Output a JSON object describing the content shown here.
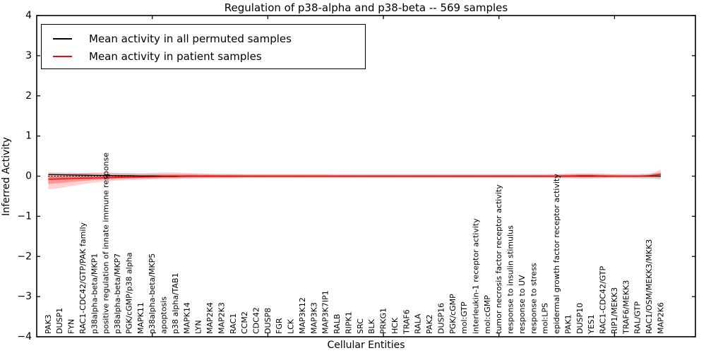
{
  "title": "Regulation of p38-alpha and p38-beta -- 569 samples",
  "legend": {
    "entries": [
      {
        "label": "Mean activity in all permuted samples",
        "color": "#000000"
      },
      {
        "label": "Mean activity in patient samples",
        "color": "#ff0000"
      }
    ]
  },
  "colors": {
    "patient_line": "#ff0000",
    "permuted_line": "#000000",
    "patient_band": "rgba(255,0,0,0.18)",
    "patient_band_inner": "rgba(255,0,0,0.28)",
    "permuted_band": "rgba(0,0,0,0.14)",
    "zero_line": "#000000",
    "frame": "#000000"
  },
  "chart_data": {
    "type": "line",
    "title": "Regulation of p38-alpha and p38-beta -- 569 samples",
    "xlabel": "Cellular Entities",
    "ylabel": "Inferred Activity",
    "ylim": [
      -4,
      4
    ],
    "xlim": [
      0,
      57
    ],
    "yticks": [
      4,
      3,
      2,
      1,
      0,
      -1,
      -2,
      -3,
      -4
    ],
    "xticks_major": [
      10,
      20,
      30,
      40,
      50
    ],
    "grid": false,
    "legend_position": "upper left",
    "zero_line_style": "dotted",
    "categories": [
      "PAK3",
      "DUSP1",
      "FYN",
      "RAC1-CDC42/GTP/PAK family",
      "p38alpha-beta/MKP1",
      "positive regulation of innate immune response",
      "p38alpha-beta/MKP7",
      "PGK/cGMP/p38 alpha",
      "MAPK11",
      "p38alpha-beta/MKP5",
      "apoptosis",
      "p38 alpha/TAB1",
      "MAPK14",
      "LYN",
      "MAP2K4",
      "MAP2K3",
      "RAC1",
      "CCM2",
      "CDC42",
      "DUSP8",
      "FGR",
      "LCK",
      "MAP3K12",
      "MAP3K3",
      "MAP3K7IP1",
      "RALB",
      "RIPK1",
      "SRC",
      "BLK",
      "PRKG1",
      "HCK",
      "TRAF6",
      "RALA",
      "PAK2",
      "DUSP16",
      "PGK/cGMP",
      "mol:GTP",
      "interleukin-1 receptor activity",
      "mol:cGMP",
      "tumor necrosis factor receptor activity",
      "response to insulin stimulus",
      "response to UV",
      "response to stress",
      "mol:LPS",
      "epidermal growth factor receptor activity",
      "PAK1",
      "DUSP10",
      "YES1",
      "RAC1-CDC42/GTP",
      "RIP1/MEKK3",
      "TRAF6/MEKK3",
      "RAL/GTP",
      "RAC1/OSM/MEKK3/MKK3",
      "MAP2K6"
    ],
    "series": [
      {
        "name": "Mean activity in all permuted samples",
        "color": "#000000",
        "values": [
          0.04,
          0.035,
          0.03,
          0.025,
          0.02,
          0.015,
          0.01,
          0.01,
          0.005,
          0.005,
          0,
          0,
          0,
          0,
          0,
          0,
          0,
          0,
          0,
          0,
          0,
          0,
          0,
          0,
          0,
          0,
          0,
          0,
          0,
          0,
          0,
          0,
          0,
          0,
          0,
          0,
          0,
          0,
          0,
          0,
          0,
          0,
          0,
          0,
          0,
          0,
          0,
          0,
          0,
          0,
          0,
          0,
          0,
          0
        ],
        "band_upper": [
          0.1,
          0.09,
          0.085,
          0.08,
          0.075,
          0.07,
          0.07,
          0.065,
          0.06,
          0.06,
          0.055,
          0.055,
          0.055,
          0.055,
          0.055,
          0.055,
          0.055,
          0.055,
          0.055,
          0.055,
          0.055,
          0.055,
          0.055,
          0.055,
          0.055,
          0.055,
          0.055,
          0.055,
          0.055,
          0.055,
          0.055,
          0.055,
          0.055,
          0.055,
          0.055,
          0.055,
          0.055,
          0.055,
          0.055,
          0.055,
          0.055,
          0.055,
          0.055,
          0.055,
          0.055,
          0.055,
          0.055,
          0.055,
          0.055,
          0.055,
          0.06,
          0.06,
          0.065,
          0.08
        ],
        "band_lower": [
          -0.07,
          -0.07,
          -0.065,
          -0.065,
          -0.06,
          -0.06,
          -0.06,
          -0.055,
          -0.055,
          -0.055,
          -0.05,
          -0.05,
          -0.05,
          -0.05,
          -0.05,
          -0.05,
          -0.05,
          -0.05,
          -0.05,
          -0.05,
          -0.05,
          -0.05,
          -0.05,
          -0.05,
          -0.05,
          -0.05,
          -0.05,
          -0.05,
          -0.05,
          -0.05,
          -0.05,
          -0.05,
          -0.05,
          -0.05,
          -0.05,
          -0.05,
          -0.05,
          -0.05,
          -0.05,
          -0.05,
          -0.05,
          -0.05,
          -0.05,
          -0.05,
          -0.05,
          -0.05,
          -0.05,
          -0.05,
          -0.05,
          -0.05,
          -0.055,
          -0.06,
          -0.065,
          -0.08
        ]
      },
      {
        "name": "Mean activity in patient samples",
        "color": "#ff0000",
        "values": [
          -0.08,
          -0.07,
          -0.06,
          -0.05,
          -0.045,
          -0.04,
          -0.03,
          -0.025,
          -0.02,
          -0.015,
          -0.01,
          -0.01,
          0,
          0,
          0,
          0,
          0,
          0,
          0,
          0,
          0,
          0,
          0,
          0,
          0,
          0,
          0,
          0,
          0,
          0,
          0,
          0,
          0,
          0,
          0,
          0,
          0,
          0,
          0,
          0,
          0,
          0,
          0,
          0,
          0,
          0,
          0.01,
          0.01,
          0,
          0,
          0,
          0,
          0.01,
          0.04
        ],
        "band_upper": [
          0.07,
          0.07,
          0.07,
          0.08,
          0.09,
          0.09,
          0.08,
          0.08,
          0.07,
          0.08,
          0.09,
          0.09,
          0.08,
          0.07,
          0.06,
          0.05,
          0.05,
          0.04,
          0.04,
          0.04,
          0.04,
          0.04,
          0.04,
          0.04,
          0.04,
          0.03,
          0.03,
          0.03,
          0.03,
          0.03,
          0.03,
          0.03,
          0.03,
          0.03,
          0.03,
          0.03,
          0.03,
          0.03,
          0.03,
          0.03,
          0.03,
          0.03,
          0.03,
          0.03,
          0.04,
          0.06,
          0.07,
          0.07,
          0.06,
          0.04,
          0.03,
          0.03,
          0.05,
          0.16
        ],
        "band_lower": [
          -0.33,
          -0.3,
          -0.25,
          -0.2,
          -0.16,
          -0.13,
          -0.11,
          -0.1,
          -0.09,
          -0.08,
          -0.07,
          -0.07,
          -0.06,
          -0.06,
          -0.05,
          -0.05,
          -0.05,
          -0.04,
          -0.04,
          -0.04,
          -0.04,
          -0.04,
          -0.04,
          -0.04,
          -0.04,
          -0.04,
          -0.04,
          -0.04,
          -0.04,
          -0.04,
          -0.04,
          -0.04,
          -0.04,
          -0.04,
          -0.04,
          -0.04,
          -0.04,
          -0.04,
          -0.04,
          -0.04,
          -0.04,
          -0.04,
          -0.04,
          -0.04,
          -0.04,
          -0.05,
          -0.06,
          -0.06,
          -0.05,
          -0.04,
          -0.04,
          -0.04,
          -0.04,
          -0.05
        ]
      }
    ]
  }
}
